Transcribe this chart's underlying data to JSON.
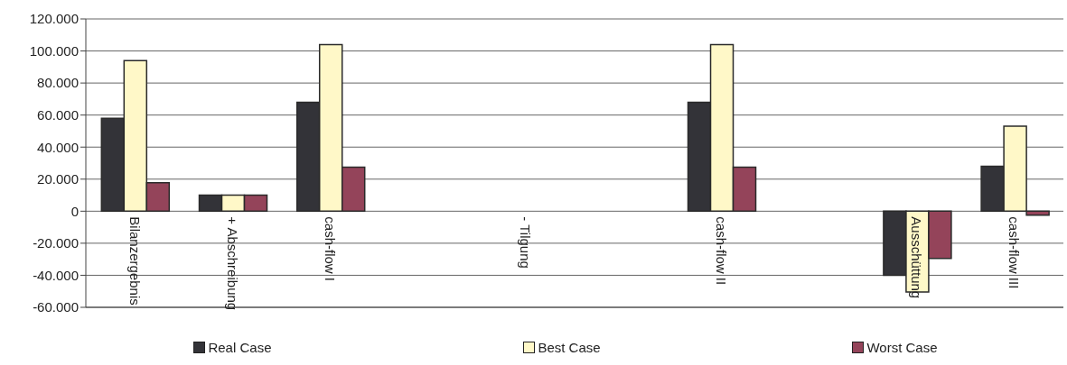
{
  "chart_data": {
    "type": "bar",
    "categories": [
      "Bilanzergebnis",
      "+ Abschreibung",
      "cash-flow I",
      null,
      "- Tilgung",
      null,
      "cash-flow II",
      null,
      "Ausschüttung",
      "cash-flow III"
    ],
    "series": [
      {
        "name": "Real Case",
        "color": "#333338",
        "values": [
          58000,
          10000,
          68000,
          null,
          0,
          null,
          68000,
          null,
          -40000,
          28000
        ]
      },
      {
        "name": "Best Case",
        "color": "#fff8c8",
        "values": [
          94000,
          10000,
          104000,
          null,
          0,
          null,
          104000,
          null,
          -50500,
          53000
        ]
      },
      {
        "name": "Worst Case",
        "color": "#94445a",
        "values": [
          17800,
          10000,
          27500,
          null,
          0,
          null,
          27500,
          null,
          -29500,
          -2500
        ]
      }
    ],
    "ylim": [
      -60000,
      120000
    ],
    "yticks": [
      {
        "value": -60000,
        "label": "-60.000"
      },
      {
        "value": -40000,
        "label": "-40.000"
      },
      {
        "value": -20000,
        "label": "-20.000"
      },
      {
        "value": 0,
        "label": "0"
      },
      {
        "value": 20000,
        "label": "20.000"
      },
      {
        "value": 40000,
        "label": "40.000"
      },
      {
        "value": 60000,
        "label": "60.000"
      },
      {
        "value": 80000,
        "label": "80.000"
      },
      {
        "value": 100000,
        "label": "100.000"
      },
      {
        "value": 120000,
        "label": "120.000"
      }
    ],
    "grid": "y",
    "legend": "bottom"
  }
}
